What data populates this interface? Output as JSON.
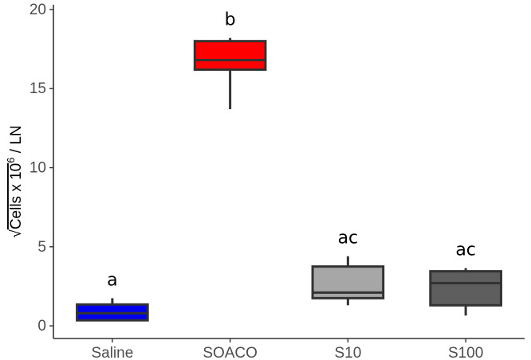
{
  "chart_data": {
    "type": "box",
    "ylabel": {
      "main": "Cells x 10",
      "superscript": "6",
      "suffix": " / LN",
      "sqrt_symbol": "√"
    },
    "ylim": [
      -0.8,
      20.3
    ],
    "yticks": [
      0,
      5,
      10,
      15,
      20
    ],
    "grid": false,
    "categories": [
      "Saline",
      "SOACO",
      "S10",
      "S100"
    ],
    "boxes": [
      {
        "category": "Saline",
        "min": 0.3,
        "q1": 0.35,
        "median": 0.8,
        "q3": 1.35,
        "max": 1.75,
        "fill": "#0000ee",
        "group_label": "a"
      },
      {
        "category": "SOACO",
        "min": 13.7,
        "q1": 16.2,
        "median": 16.8,
        "q3": 18.0,
        "max": 18.2,
        "fill": "#ff0000",
        "group_label": "b"
      },
      {
        "category": "S10",
        "min": 1.3,
        "q1": 1.75,
        "median": 2.1,
        "q3": 3.75,
        "max": 4.4,
        "fill": "#a6a6a6",
        "group_label": "ac"
      },
      {
        "category": "S100",
        "min": 0.65,
        "q1": 1.3,
        "median": 2.7,
        "q3": 3.45,
        "max": 3.65,
        "fill": "#5e5e5e",
        "group_label": "ac"
      }
    ],
    "colors": {
      "box_stroke": "#333333",
      "axis": "#333333"
    }
  }
}
